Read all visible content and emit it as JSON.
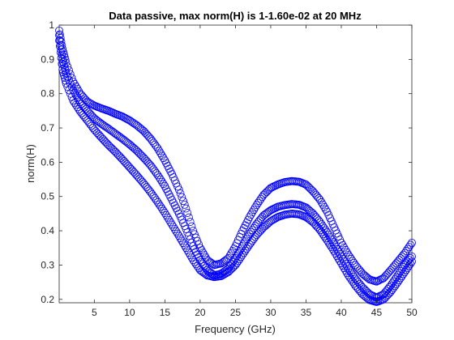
{
  "chart_data": {
    "type": "scatter",
    "title": "Data passive, max norm(H) is 1-1.60e-02 at 20 MHz",
    "xlabel": "Frequency (GHz)",
    "ylabel": "norm(H)",
    "xlim": [
      0.02,
      50
    ],
    "ylim": [
      0.19,
      1
    ],
    "xticks": [
      5,
      10,
      15,
      20,
      25,
      30,
      35,
      40,
      45,
      50
    ],
    "xtick_labels": [
      "5",
      "10",
      "15",
      "20",
      "25",
      "30",
      "35",
      "40",
      "45",
      "50"
    ],
    "yticks": [
      0.2,
      0.3,
      0.4,
      0.5,
      0.6,
      0.7,
      0.8,
      0.9,
      1.0
    ],
    "ytick_labels": [
      "0.2",
      "0.3",
      "0.4",
      "0.5",
      "0.6",
      "0.7",
      "0.8",
      "0.9",
      "1"
    ],
    "grid": false,
    "marker": "circle",
    "marker_color": "#0000ff",
    "series": [
      {
        "x": [
          0.02,
          0.5,
          1,
          2,
          3,
          4,
          5,
          6,
          7,
          8,
          9,
          10,
          11,
          12,
          13,
          14,
          15,
          16,
          17,
          18,
          19,
          20,
          21,
          22,
          23,
          24,
          25,
          26,
          27,
          28,
          29,
          30,
          31,
          32,
          33,
          34,
          35,
          36,
          37,
          38,
          39,
          40,
          41,
          42,
          43,
          44,
          45,
          46,
          47,
          48,
          49,
          50
        ],
        "y": [
          0.984,
          0.93,
          0.89,
          0.835,
          0.8,
          0.777,
          0.765,
          0.757,
          0.75,
          0.741,
          0.733,
          0.722,
          0.708,
          0.691,
          0.668,
          0.64,
          0.605,
          0.565,
          0.52,
          0.465,
          0.4,
          0.35,
          0.315,
          0.3,
          0.305,
          0.32,
          0.355,
          0.4,
          0.44,
          0.475,
          0.505,
          0.525,
          0.535,
          0.542,
          0.545,
          0.543,
          0.535,
          0.515,
          0.49,
          0.455,
          0.41,
          0.365,
          0.33,
          0.3,
          0.275,
          0.258,
          0.252,
          0.262,
          0.285,
          0.31,
          0.335,
          0.365
        ]
      },
      {
        "x": [
          0.02,
          0.5,
          1,
          2,
          3,
          4,
          5,
          6,
          7,
          8,
          9,
          10,
          11,
          12,
          13,
          14,
          15,
          16,
          17,
          18,
          19,
          20,
          21,
          22,
          23,
          24,
          25,
          26,
          27,
          28,
          29,
          30,
          31,
          32,
          33,
          34,
          35,
          36,
          37,
          38,
          39,
          40,
          41,
          42,
          43,
          44,
          45,
          46,
          47,
          48,
          49,
          50
        ],
        "y": [
          0.97,
          0.9,
          0.86,
          0.81,
          0.775,
          0.75,
          0.728,
          0.712,
          0.698,
          0.683,
          0.668,
          0.652,
          0.634,
          0.613,
          0.59,
          0.562,
          0.53,
          0.49,
          0.45,
          0.405,
          0.355,
          0.315,
          0.285,
          0.27,
          0.275,
          0.29,
          0.32,
          0.355,
          0.39,
          0.42,
          0.445,
          0.46,
          0.47,
          0.475,
          0.478,
          0.476,
          0.468,
          0.45,
          0.425,
          0.395,
          0.36,
          0.325,
          0.29,
          0.26,
          0.235,
          0.215,
          0.205,
          0.215,
          0.24,
          0.27,
          0.3,
          0.325
        ]
      },
      {
        "x": [
          0.02,
          0.5,
          1,
          2,
          3,
          4,
          5,
          6,
          7,
          8,
          9,
          10,
          11,
          12,
          13,
          14,
          15,
          16,
          17,
          18,
          19,
          20,
          21,
          22,
          23,
          24,
          25,
          26,
          27,
          28,
          29,
          30,
          31,
          32,
          33,
          34,
          35,
          36,
          37,
          38,
          39,
          40,
          41,
          42,
          43,
          44,
          45,
          46,
          47,
          48,
          49,
          50
        ],
        "y": [
          0.955,
          0.87,
          0.83,
          0.78,
          0.748,
          0.722,
          0.695,
          0.672,
          0.65,
          0.63,
          0.608,
          0.585,
          0.562,
          0.538,
          0.512,
          0.483,
          0.452,
          0.418,
          0.385,
          0.35,
          0.315,
          0.285,
          0.27,
          0.265,
          0.268,
          0.28,
          0.3,
          0.33,
          0.36,
          0.388,
          0.41,
          0.428,
          0.44,
          0.447,
          0.45,
          0.448,
          0.44,
          0.425,
          0.402,
          0.372,
          0.34,
          0.305,
          0.27,
          0.24,
          0.215,
          0.198,
          0.192,
          0.2,
          0.222,
          0.25,
          0.28,
          0.31
        ]
      }
    ]
  }
}
